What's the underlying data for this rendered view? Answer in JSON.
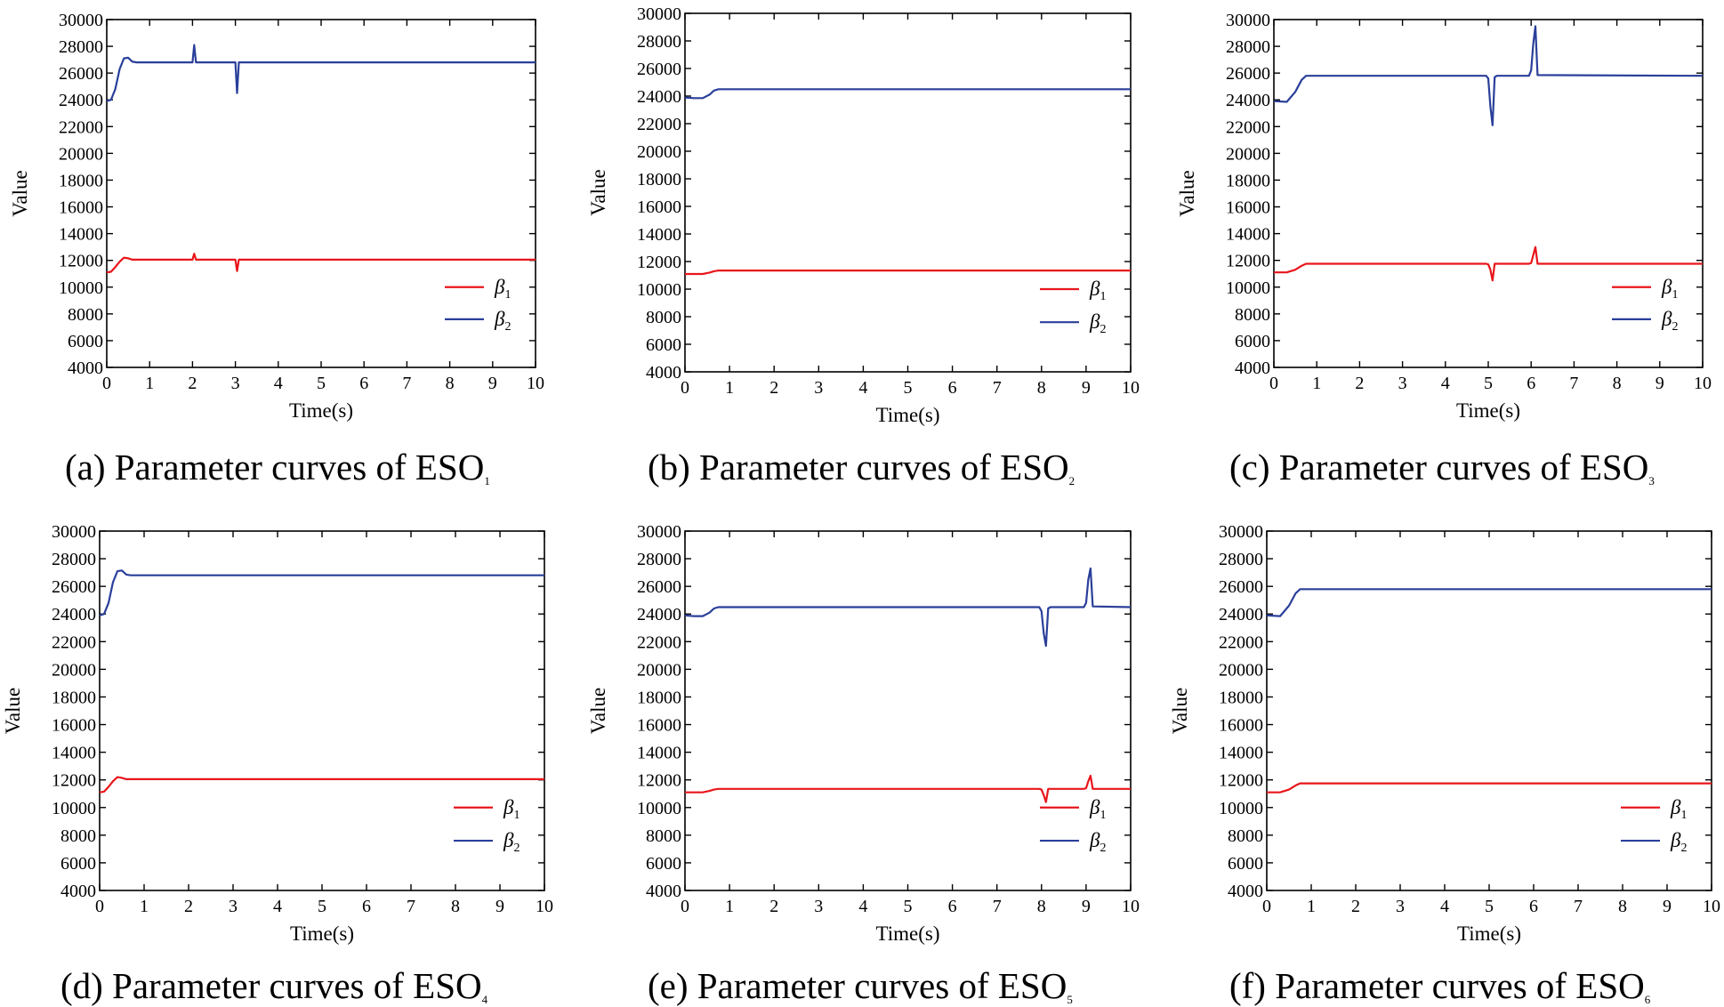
{
  "chart_data": [
    {
      "id": "a",
      "type": "line",
      "caption": {
        "prefix": "(a) Parameter curves of ESO",
        "sub": "1"
      },
      "xlabel": "Time(s)",
      "ylabel": "Value",
      "xlim": [
        0,
        10
      ],
      "ylim": [
        4000,
        30000
      ],
      "xticks": [
        0,
        1,
        2,
        3,
        4,
        5,
        6,
        7,
        8,
        9,
        10
      ],
      "yticks": [
        4000,
        6000,
        8000,
        10000,
        12000,
        14000,
        16000,
        18000,
        20000,
        22000,
        24000,
        26000,
        28000,
        30000
      ],
      "legend_position": "lower-right",
      "series": [
        {
          "name": "β1",
          "symbol": "β",
          "sub": "1",
          "color": "#e8161b",
          "x": [
            0,
            0.1,
            0.2,
            0.3,
            0.4,
            0.5,
            0.6,
            0.7,
            2.0,
            2.04,
            2.08,
            2.12,
            3.0,
            3.04,
            3.08,
            3.12,
            10
          ],
          "y": [
            11100,
            11150,
            11500,
            11900,
            12200,
            12150,
            12050,
            12050,
            12050,
            12500,
            12050,
            12050,
            12050,
            11200,
            12050,
            12050,
            12050
          ]
        },
        {
          "name": "β2",
          "symbol": "β",
          "sub": "2",
          "color": "#2a3f9a",
          "x": [
            0,
            0.1,
            0.2,
            0.3,
            0.4,
            0.5,
            0.6,
            0.7,
            2.0,
            2.04,
            2.08,
            2.12,
            3.0,
            3.04,
            3.08,
            3.12,
            10
          ],
          "y": [
            23900,
            24000,
            24800,
            26300,
            27100,
            27150,
            26850,
            26800,
            26800,
            28100,
            26800,
            26800,
            26800,
            24500,
            26800,
            26800,
            26800
          ]
        }
      ]
    },
    {
      "id": "b",
      "type": "line",
      "caption": {
        "prefix": "(b) Parameter curves of ESO",
        "sub": "2"
      },
      "xlabel": "Time(s)",
      "ylabel": "Value",
      "xlim": [
        0,
        10
      ],
      "ylim": [
        4000,
        30000
      ],
      "xticks": [
        0,
        1,
        2,
        3,
        4,
        5,
        6,
        7,
        8,
        9,
        10
      ],
      "yticks": [
        4000,
        6000,
        8000,
        10000,
        12000,
        14000,
        16000,
        18000,
        20000,
        22000,
        24000,
        26000,
        28000,
        30000
      ],
      "legend_position": "lower-right",
      "series": [
        {
          "name": "β1",
          "symbol": "β",
          "sub": "1",
          "color": "#e8161b",
          "x": [
            0,
            0.2,
            0.4,
            0.55,
            0.65,
            0.75,
            10
          ],
          "y": [
            11100,
            11100,
            11100,
            11200,
            11300,
            11350,
            11350
          ]
        },
        {
          "name": "β2",
          "symbol": "β",
          "sub": "2",
          "color": "#2a3f9a",
          "x": [
            0,
            0.2,
            0.4,
            0.55,
            0.65,
            0.75,
            10
          ],
          "y": [
            23900,
            23850,
            23850,
            24100,
            24400,
            24500,
            24500
          ]
        }
      ]
    },
    {
      "id": "c",
      "type": "line",
      "caption": {
        "prefix": "(c) Parameter curves of ESO",
        "sub": "3"
      },
      "xlabel": "Time(s)",
      "ylabel": "Value",
      "xlim": [
        0,
        10
      ],
      "ylim": [
        4000,
        30000
      ],
      "xticks": [
        0,
        1,
        2,
        3,
        4,
        5,
        6,
        7,
        8,
        9,
        10
      ],
      "yticks": [
        4000,
        6000,
        8000,
        10000,
        12000,
        14000,
        16000,
        18000,
        20000,
        22000,
        24000,
        26000,
        28000,
        30000
      ],
      "legend_position": "lower-right",
      "series": [
        {
          "name": "β1",
          "symbol": "β",
          "sub": "1",
          "color": "#e8161b",
          "x": [
            0,
            0.3,
            0.5,
            0.65,
            0.75,
            0.85,
            4.95,
            5.0,
            5.05,
            5.1,
            5.15,
            5.2,
            5.95,
            6.0,
            6.05,
            6.1,
            6.15,
            10
          ],
          "y": [
            11100,
            11100,
            11300,
            11600,
            11750,
            11750,
            11750,
            11700,
            11300,
            10500,
            11750,
            11750,
            11750,
            11800,
            12400,
            13000,
            11750,
            11750
          ]
        },
        {
          "name": "β2",
          "symbol": "β",
          "sub": "2",
          "color": "#2a3f9a",
          "x": [
            0,
            0.3,
            0.5,
            0.65,
            0.75,
            0.85,
            4.95,
            5.0,
            5.05,
            5.1,
            5.15,
            5.2,
            5.95,
            6.0,
            6.05,
            6.1,
            6.15,
            10
          ],
          "y": [
            23900,
            23850,
            24600,
            25500,
            25800,
            25800,
            25800,
            25600,
            23500,
            22100,
            25700,
            25800,
            25800,
            26200,
            28200,
            29500,
            25850,
            25800
          ]
        }
      ]
    },
    {
      "id": "d",
      "type": "line",
      "caption": {
        "prefix": "(d) Parameter curves of ESO",
        "sub": "4"
      },
      "xlabel": "Time(s)",
      "ylabel": "Value",
      "xlim": [
        0,
        10
      ],
      "ylim": [
        4000,
        30000
      ],
      "xticks": [
        0,
        1,
        2,
        3,
        4,
        5,
        6,
        7,
        8,
        9,
        10
      ],
      "yticks": [
        4000,
        6000,
        8000,
        10000,
        12000,
        14000,
        16000,
        18000,
        20000,
        22000,
        24000,
        26000,
        28000,
        30000
      ],
      "legend_position": "lower-right",
      "series": [
        {
          "name": "β1",
          "symbol": "β",
          "sub": "1",
          "color": "#e8161b",
          "x": [
            0,
            0.1,
            0.2,
            0.3,
            0.4,
            0.5,
            0.6,
            0.7,
            10
          ],
          "y": [
            11100,
            11150,
            11500,
            11900,
            12200,
            12150,
            12050,
            12050,
            12050
          ]
        },
        {
          "name": "β2",
          "symbol": "β",
          "sub": "2",
          "color": "#2a3f9a",
          "x": [
            0,
            0.1,
            0.2,
            0.3,
            0.4,
            0.5,
            0.6,
            0.7,
            10
          ],
          "y": [
            23900,
            24000,
            24800,
            26300,
            27100,
            27150,
            26850,
            26800,
            26800
          ]
        }
      ]
    },
    {
      "id": "e",
      "type": "line",
      "caption": {
        "prefix": "(e) Parameter curves of ESO",
        "sub": "5"
      },
      "xlabel": "Time(s)",
      "ylabel": "Value",
      "xlim": [
        0,
        10
      ],
      "ylim": [
        4000,
        30000
      ],
      "xticks": [
        0,
        1,
        2,
        3,
        4,
        5,
        6,
        7,
        8,
        9,
        10
      ],
      "yticks": [
        4000,
        6000,
        8000,
        10000,
        12000,
        14000,
        16000,
        18000,
        20000,
        22000,
        24000,
        26000,
        28000,
        30000
      ],
      "legend_position": "lower-right",
      "series": [
        {
          "name": "β1",
          "symbol": "β",
          "sub": "1",
          "color": "#e8161b",
          "x": [
            0,
            0.2,
            0.4,
            0.55,
            0.65,
            0.75,
            7.95,
            8.0,
            8.05,
            8.1,
            8.15,
            8.2,
            8.95,
            9.0,
            9.05,
            9.1,
            9.15,
            10
          ],
          "y": [
            11100,
            11100,
            11100,
            11200,
            11300,
            11350,
            11350,
            11300,
            10900,
            10400,
            11350,
            11350,
            11350,
            11400,
            11900,
            12300,
            11350,
            11350
          ]
        },
        {
          "name": "β2",
          "symbol": "β",
          "sub": "2",
          "color": "#2a3f9a",
          "x": [
            0,
            0.2,
            0.4,
            0.55,
            0.65,
            0.75,
            7.95,
            8.0,
            8.05,
            8.1,
            8.15,
            8.2,
            8.95,
            9.0,
            9.05,
            9.1,
            9.15,
            10
          ],
          "y": [
            23900,
            23850,
            23850,
            24100,
            24400,
            24500,
            24500,
            24200,
            22600,
            21700,
            24400,
            24500,
            24500,
            24800,
            26500,
            27300,
            24550,
            24500
          ]
        }
      ]
    },
    {
      "id": "f",
      "type": "line",
      "caption": {
        "prefix": "(f) Parameter curves of ESO",
        "sub": "6"
      },
      "xlabel": "Time(s)",
      "ylabel": "Value",
      "xlim": [
        0,
        10
      ],
      "ylim": [
        4000,
        30000
      ],
      "xticks": [
        0,
        1,
        2,
        3,
        4,
        5,
        6,
        7,
        8,
        9,
        10
      ],
      "yticks": [
        4000,
        6000,
        8000,
        10000,
        12000,
        14000,
        16000,
        18000,
        20000,
        22000,
        24000,
        26000,
        28000,
        30000
      ],
      "legend_position": "lower-right",
      "series": [
        {
          "name": "β1",
          "symbol": "β",
          "sub": "1",
          "color": "#e8161b",
          "x": [
            0,
            0.3,
            0.5,
            0.65,
            0.75,
            0.85,
            10
          ],
          "y": [
            11100,
            11100,
            11300,
            11600,
            11750,
            11750,
            11750
          ]
        },
        {
          "name": "β2",
          "symbol": "β",
          "sub": "2",
          "color": "#2a3f9a",
          "x": [
            0,
            0.3,
            0.5,
            0.65,
            0.75,
            0.85,
            10
          ],
          "y": [
            23900,
            23850,
            24600,
            25500,
            25800,
            25800,
            25800
          ]
        }
      ]
    }
  ]
}
